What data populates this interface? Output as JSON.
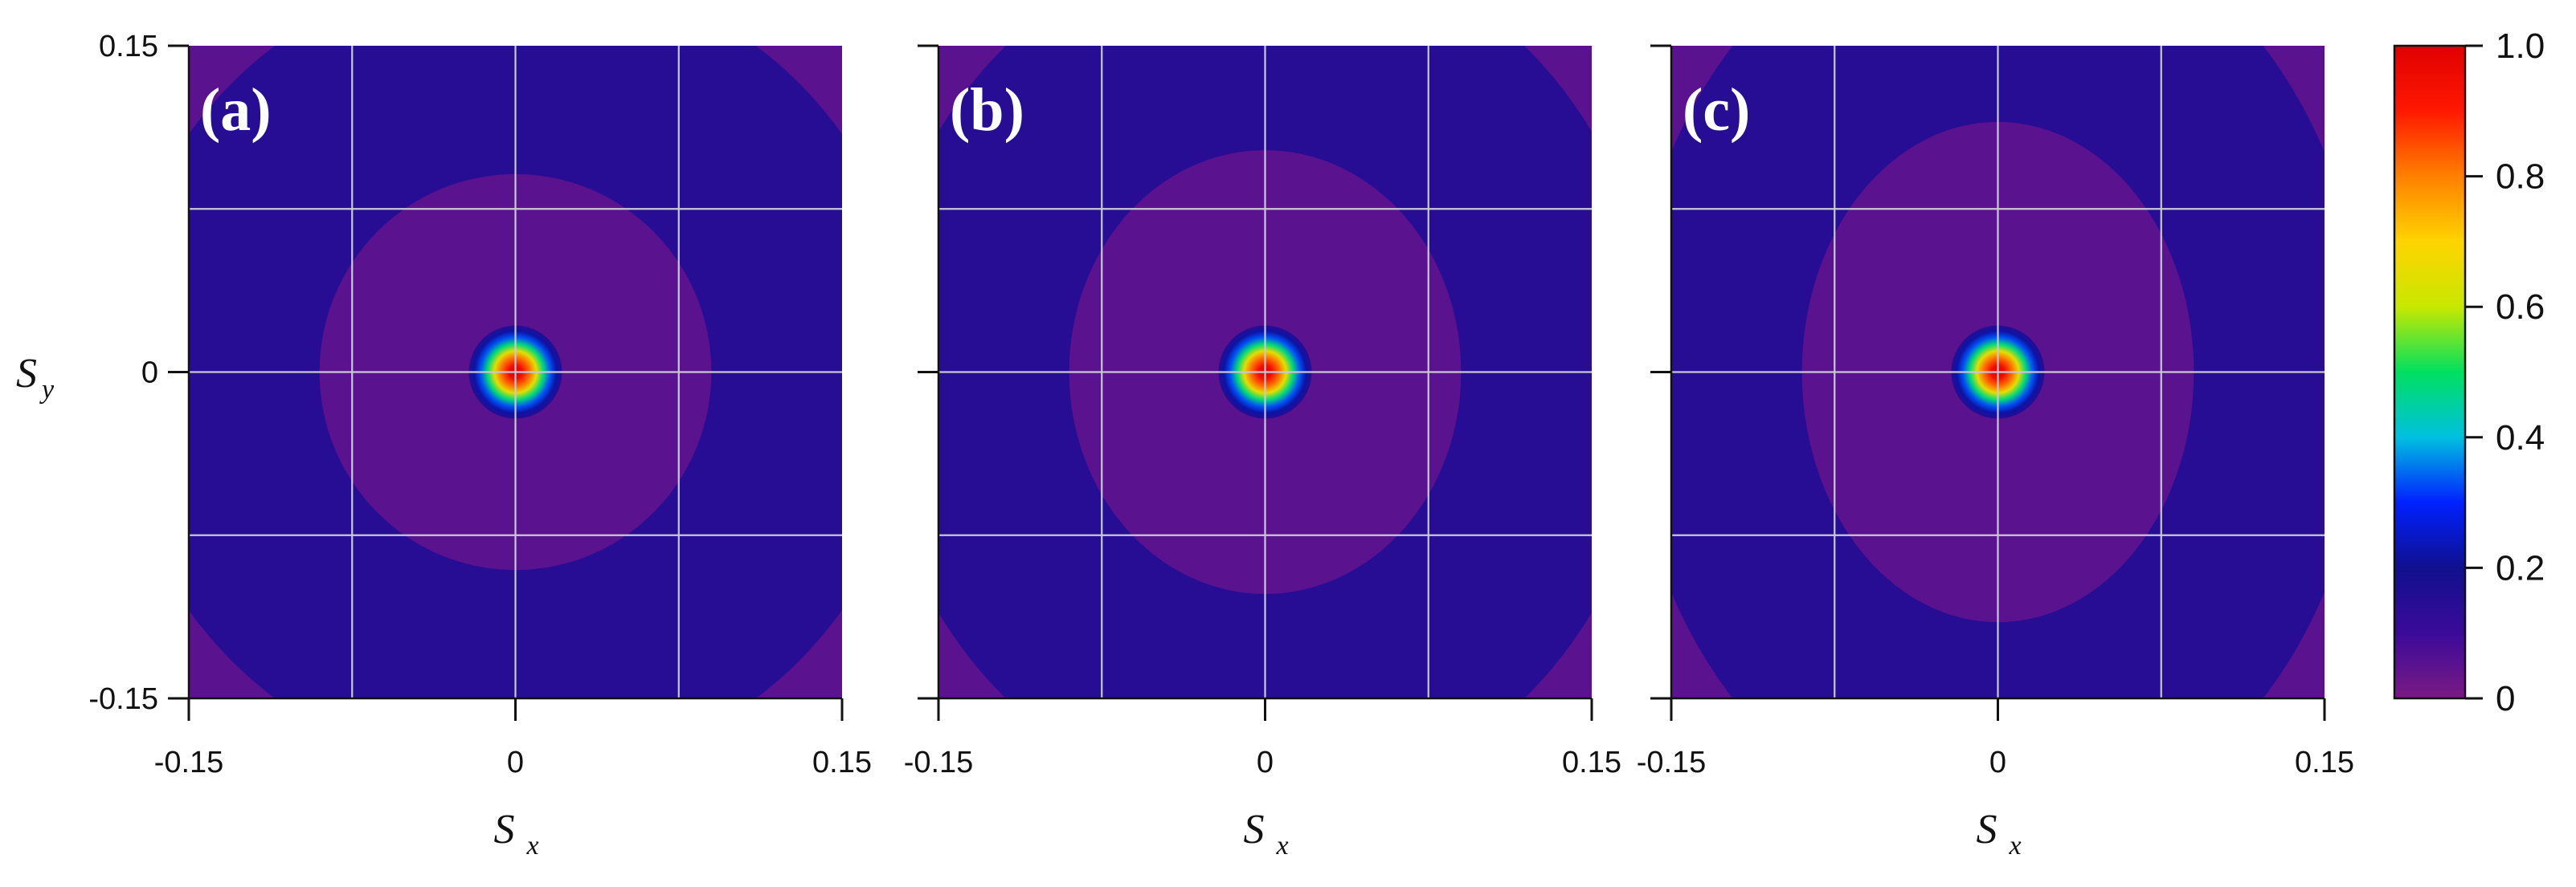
{
  "chart_data": [
    {
      "type": "heatmap",
      "panel_label": "(a)",
      "xlabel": {
        "main": "S",
        "sub": "x"
      },
      "ylabel": {
        "main": "S",
        "sub": "y"
      },
      "xlim": [
        -0.15,
        0.15
      ],
      "ylim": [
        -0.15,
        0.15
      ],
      "xticks": [
        "-0.15",
        "0",
        "0.15"
      ],
      "yticks": [
        "0.15",
        "0",
        "-0.15"
      ],
      "grid": true,
      "peak": {
        "x": 0,
        "y": 0,
        "value": 1.0
      },
      "inner_ellipse": {
        "semi_axis_x": 0.09,
        "semi_axis_y": 0.091,
        "value": 0.05
      },
      "outer_ellipse": {
        "semi_axis_x": 0.185,
        "semi_axis_y": 0.187,
        "value": 0.15
      },
      "background_value": 0.05
    },
    {
      "type": "heatmap",
      "panel_label": "(b)",
      "xlabel": {
        "main": "S",
        "sub": "x"
      },
      "ylabel": {
        "main": "",
        "sub": ""
      },
      "xlim": [
        -0.15,
        0.15
      ],
      "ylim": [
        -0.15,
        0.15
      ],
      "xticks": [
        "-0.15",
        "0",
        "0.15"
      ],
      "yticks": [],
      "grid": true,
      "peak": {
        "x": 0,
        "y": 0,
        "value": 1.0
      },
      "inner_ellipse": {
        "semi_axis_x": 0.09,
        "semi_axis_y": 0.102,
        "value": 0.05
      },
      "outer_ellipse": {
        "semi_axis_x": 0.18,
        "semi_axis_y": 0.2,
        "value": 0.15
      },
      "background_value": 0.05
    },
    {
      "type": "heatmap",
      "panel_label": "(c)",
      "xlabel": {
        "main": "S",
        "sub": "x"
      },
      "ylabel": {
        "main": "",
        "sub": ""
      },
      "xlim": [
        -0.15,
        0.15
      ],
      "ylim": [
        -0.15,
        0.15
      ],
      "xticks": [
        "-0.15",
        "0",
        "0.15"
      ],
      "yticks": [],
      "grid": true,
      "peak": {
        "x": 0,
        "y": 0,
        "value": 1.0
      },
      "inner_ellipse": {
        "semi_axis_x": 0.09,
        "semi_axis_y": 0.115,
        "value": 0.05
      },
      "outer_ellipse": {
        "semi_axis_x": 0.17,
        "semi_axis_y": 0.215,
        "value": 0.15
      },
      "background_value": 0.05
    }
  ],
  "colorbar": {
    "range": [
      0,
      1.0
    ],
    "ticks": [
      "1.0",
      "0.8",
      "0.6",
      "0.4",
      "0.2",
      "0"
    ],
    "colormap": [
      "#7a1a84",
      "#3b0a99",
      "#10108e",
      "#0020ff",
      "#00c0e0",
      "#00e060",
      "#c8e800",
      "#ffd400",
      "#ff8000",
      "#ff1800",
      "#e00000"
    ]
  }
}
